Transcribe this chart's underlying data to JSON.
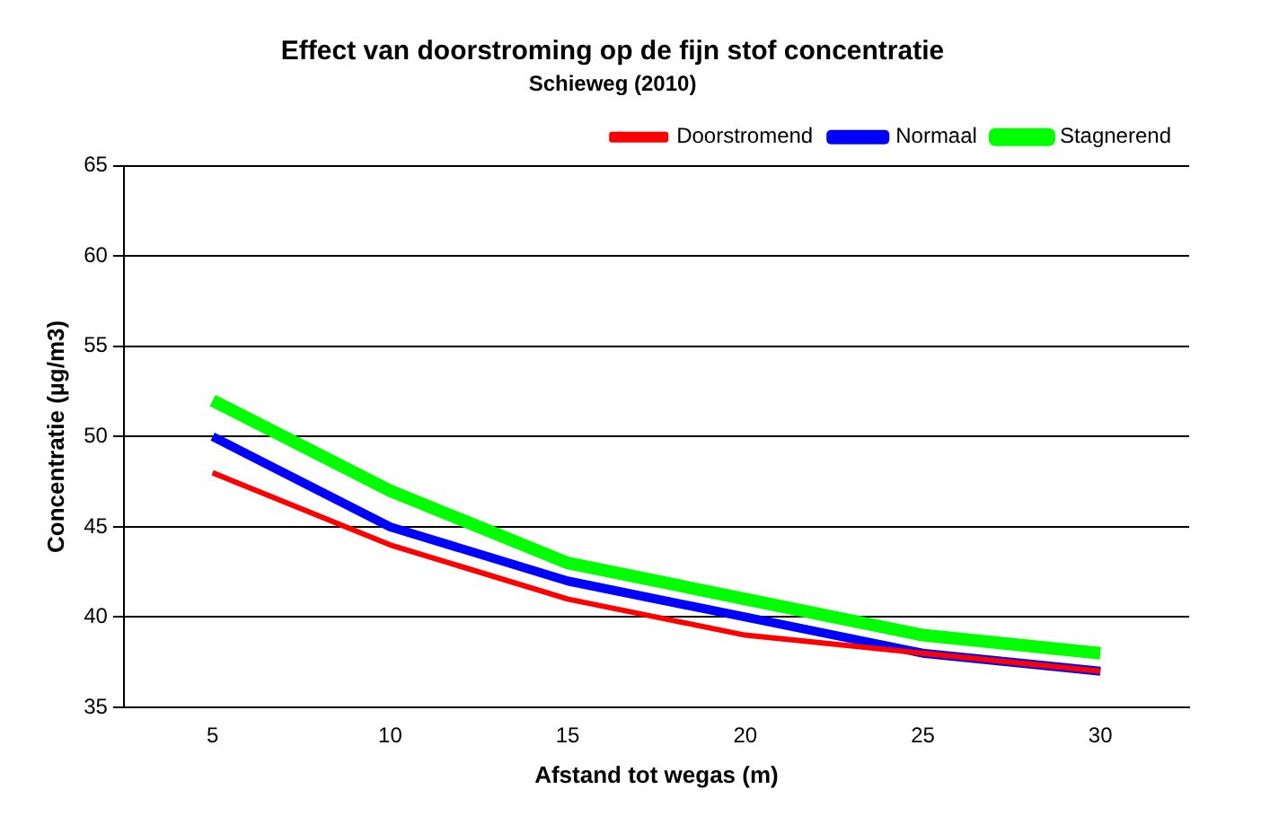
{
  "chart_data": {
    "type": "line",
    "title": "Effect van doorstroming op de fijn stof concentratie",
    "subtitle": "Schieweg (2010)",
    "xlabel": "Afstand tot wegas (m)",
    "ylabel": "Concentratie (µg/m3)",
    "categories": [
      "5",
      "10",
      "15",
      "20",
      "25",
      "30"
    ],
    "series": [
      {
        "name": "Doorstromend",
        "color": "#ff0000",
        "values": [
          48,
          44,
          41,
          39,
          38,
          37
        ]
      },
      {
        "name": "Normaal",
        "color": "#0000ff",
        "values": [
          50,
          45,
          42,
          40,
          38,
          37
        ]
      },
      {
        "name": "Stagnerend",
        "color": "#00ff00",
        "values": [
          52,
          47,
          43,
          41,
          39,
          38
        ]
      }
    ],
    "ylim": [
      35,
      65
    ],
    "yticks": [
      35,
      40,
      45,
      50,
      55,
      60,
      65
    ],
    "grid": "y",
    "legend": "top right",
    "marker": "none",
    "line_style": "solid"
  }
}
